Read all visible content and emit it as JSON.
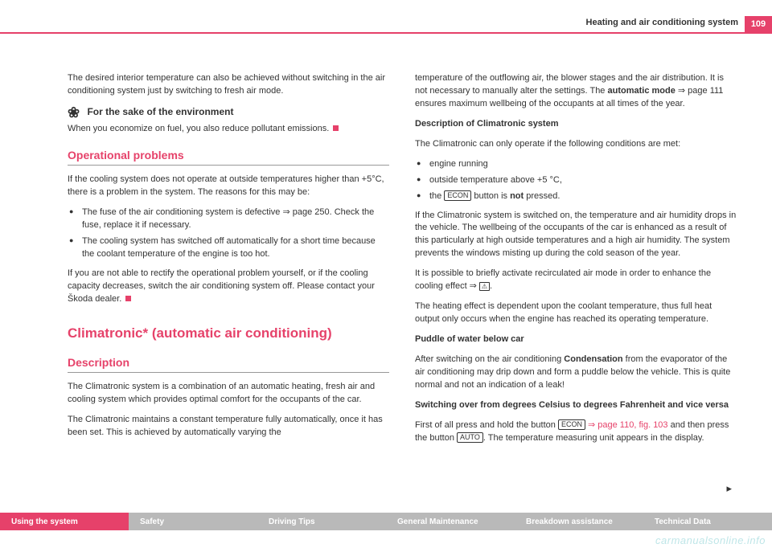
{
  "header": {
    "section_title": "Heating and air conditioning system",
    "page_number": "109"
  },
  "left": {
    "intro": "The desired interior temperature can also be achieved without switching in the air conditioning system just by switching to fresh air mode.",
    "env_icon": "❀",
    "env_heading": "For the sake of the environment",
    "env_text": "When you economize on fuel, you also reduce pollutant emissions.",
    "op_heading": "Operational problems",
    "op_p1": "If the cooling system does not operate at outside temperatures higher than +5°C, there is a problem in the system. The reasons for this may be:",
    "op_b1_a": "The fuse of the air conditioning system is defective ",
    "op_b1_ref": "⇒ page 250",
    "op_b1_b": ". Check the fuse, replace it if necessary.",
    "op_b2": "The cooling system has switched off automatically for a short time because the coolant temperature of the engine is too hot.",
    "op_p2": "If you are not able to rectify the operational problem yourself, or if the cooling capacity decreases, switch the air conditioning system off. Please contact your Škoda dealer.",
    "clim_heading": "Climatronic* (automatic air conditioning)",
    "desc_heading": "Description",
    "desc_p1": "The Climatronic system is a combination of an automatic heating, fresh air and cooling system which provides optimal comfort for the occupants of the car.",
    "desc_p2": "The Climatronic maintains a constant temperature fully automatically, once it has been set. This is achieved by automatically varying the"
  },
  "right": {
    "p1_a": "temperature of the outflowing air, the blower stages and the air distribution. It is not necessary to manually alter the settings. The ",
    "p1_bold": "automatic mode",
    "p1_ref": " ⇒ page 111",
    "p1_b": " ensures maximum wellbeing of the occupants at all times of the year.",
    "h_desc": "Description of Climatronic system",
    "p2": "The Climatronic can only operate if the following conditions are met:",
    "b1": "engine running",
    "b2": "outside temperature above +5 °C,",
    "b3_a": "the ",
    "b3_btn": "ECON",
    "b3_b": " button is ",
    "b3_not": "not",
    "b3_c": " pressed.",
    "p3": "If the Climatronic system is switched on, the temperature and air humidity drops in the vehicle. The wellbeing of the occupants of the car is enhanced as a result of this particularly at high outside temperatures and a high air humidity. The system prevents the windows misting up during the cold season of the year.",
    "p4_a": "It is possible to briefly activate recirculated air mode in order to enhance the cooling effect ⇒ ",
    "p4_warn": "⚠",
    "p4_b": ".",
    "p5": "The heating effect is dependent upon the coolant temperature, thus full heat output only occurs when the engine has reached its operating temperature.",
    "h_puddle": "Puddle of water below car",
    "p6_a": "After switching on the air conditioning ",
    "p6_bold": "Condensation",
    "p6_b": " from the evaporator of the air conditioning may drip down and form a puddle below the vehicle. This is quite normal and not an indication of a leak!",
    "h_switch": "Switching over from degrees Celsius to degrees Fahrenheit and vice versa",
    "p7_a": "First of all press and hold the button ",
    "p7_btn1": "ECON",
    "p7_ref": " ⇒ page 110, fig. 103",
    "p7_b": " and then press the button ",
    "p7_btn2": "AUTO",
    "p7_c": ". The temperature measuring unit appears in the display."
  },
  "nav": {
    "items": [
      "Using the system",
      "Safety",
      "Driving Tips",
      "General Maintenance",
      "Breakdown assistance",
      "Technical Data"
    ]
  },
  "watermark": "carmanualsonline.info",
  "colors": {
    "accent": "#e6416a",
    "nav_inactive": "#b9b9b9",
    "watermark": "#bfe6e8"
  }
}
